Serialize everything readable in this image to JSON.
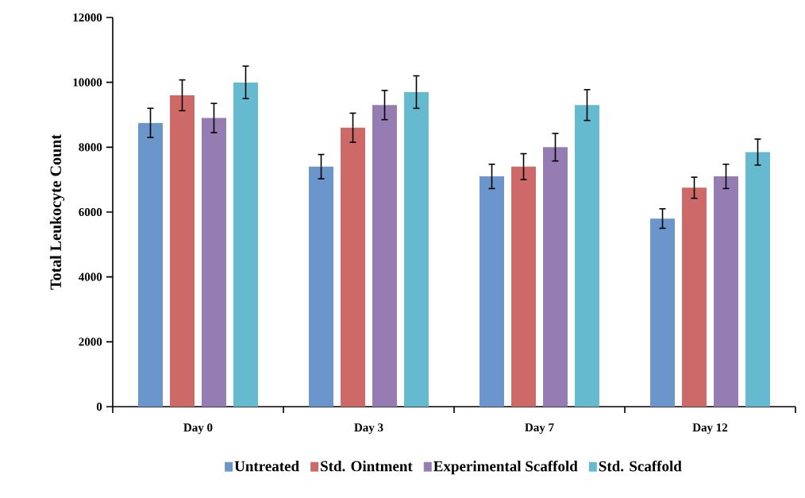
{
  "chart_data": {
    "type": "bar",
    "ylabel": "Total Leukocyte Count",
    "categories": [
      "Day 0",
      "Day 3",
      "Day 7",
      "Day 12"
    ],
    "series": [
      {
        "name": "Untreated",
        "color": "#6a96cc",
        "values": [
          8750,
          7400,
          7100,
          5800
        ],
        "errors": [
          450,
          375,
          375,
          300
        ]
      },
      {
        "name": "Std. Ointment",
        "color": "#cd6a68",
        "values": [
          9600,
          8600,
          7400,
          6750
        ],
        "errors": [
          475,
          450,
          400,
          325
        ]
      },
      {
        "name": "Experimental Scaffold",
        "color": "#957cb3",
        "values": [
          8900,
          9300,
          8000,
          7100
        ],
        "errors": [
          450,
          450,
          425,
          375
        ]
      },
      {
        "name": "Std. Scaffold",
        "color": "#66bad0",
        "values": [
          10000,
          9700,
          9300,
          7850
        ],
        "errors": [
          500,
          500,
          475,
          400
        ]
      }
    ],
    "ylim": [
      0,
      12000
    ],
    "yticks": [
      0,
      2000,
      4000,
      6000,
      8000,
      10000,
      12000
    ],
    "grid": false,
    "legend": "bottom"
  }
}
